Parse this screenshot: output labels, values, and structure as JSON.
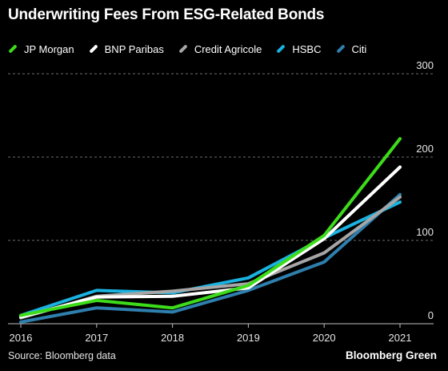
{
  "chart_data": {
    "type": "line",
    "title": "Underwriting Fees From ESG-Related Bonds",
    "xlabel": "",
    "ylabel": "",
    "x": [
      2016,
      2017,
      2018,
      2019,
      2020,
      2021
    ],
    "x_ticks": [
      "2016",
      "2017",
      "2018",
      "2019",
      "2020",
      "2021"
    ],
    "ylim": [
      0,
      300
    ],
    "y_ticks": [
      "0",
      "100",
      "200",
      "300"
    ],
    "grid": "horizontal dashed",
    "legend_position": "top-left",
    "series": [
      {
        "name": "JP Morgan",
        "color": "#3ddc1a",
        "values": [
          10,
          28,
          19,
          46,
          106,
          222
        ]
      },
      {
        "name": "BNP Paribas",
        "color": "#ffffff",
        "values": [
          8,
          32,
          33,
          43,
          102,
          188
        ]
      },
      {
        "name": "Credit Agricole",
        "color": "#a6a6a6",
        "values": [
          7,
          33,
          39,
          48,
          85,
          152
        ]
      },
      {
        "name": "HSBC",
        "color": "#1ab2e0",
        "values": [
          10,
          40,
          37,
          55,
          103,
          146
        ]
      },
      {
        "name": "Citi",
        "color": "#2e7fad",
        "values": [
          2,
          19,
          14,
          40,
          74,
          155
        ]
      }
    ]
  },
  "footer": {
    "source": "Source: Bloomberg data",
    "brand": "Bloomberg Green"
  }
}
